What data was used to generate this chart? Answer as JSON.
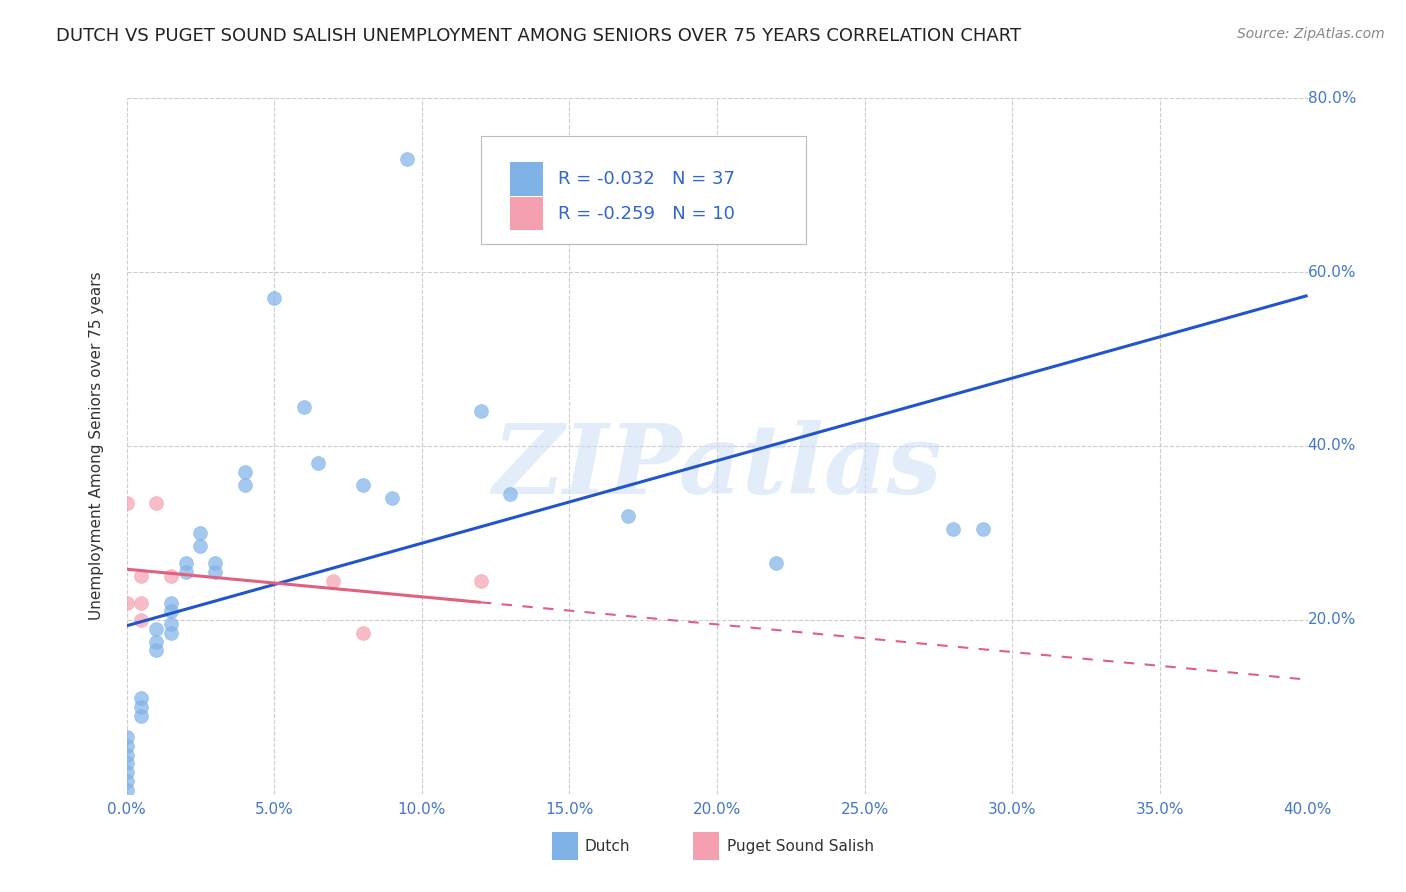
{
  "title": "DUTCH VS PUGET SOUND SALISH UNEMPLOYMENT AMONG SENIORS OVER 75 YEARS CORRELATION CHART",
  "source": "Source: ZipAtlas.com",
  "ylabel": "Unemployment Among Seniors over 75 years",
  "xlim": [
    0.0,
    0.4
  ],
  "ylim": [
    0.0,
    0.8
  ],
  "xticks": [
    0.0,
    0.05,
    0.1,
    0.15,
    0.2,
    0.25,
    0.3,
    0.35,
    0.4
  ],
  "yticks": [
    0.0,
    0.2,
    0.4,
    0.6,
    0.8
  ],
  "xtick_labels": [
    "0.0%",
    "5.0%",
    "10.0%",
    "15.0%",
    "20.0%",
    "25.0%",
    "30.0%",
    "35.0%",
    "40.0%"
  ],
  "ytick_labels_right": [
    "80.0%",
    "60.0%",
    "40.0%",
    "20.0%"
  ],
  "dutch_R": -0.032,
  "dutch_N": 37,
  "pss_R": -0.259,
  "pss_N": 10,
  "dutch_color": "#7fb3e8",
  "pss_color": "#f4a0b0",
  "dutch_line_color": "#2255cc",
  "pss_line_color": "#e06080",
  "watermark_text": "ZIPatlas",
  "dutch_points": [
    [
      0.0,
      0.065
    ],
    [
      0.0,
      0.055
    ],
    [
      0.0,
      0.045
    ],
    [
      0.0,
      0.035
    ],
    [
      0.0,
      0.025
    ],
    [
      0.0,
      0.015
    ],
    [
      0.0,
      0.005
    ],
    [
      0.005,
      0.11
    ],
    [
      0.005,
      0.1
    ],
    [
      0.005,
      0.09
    ],
    [
      0.01,
      0.19
    ],
    [
      0.01,
      0.175
    ],
    [
      0.01,
      0.165
    ],
    [
      0.015,
      0.22
    ],
    [
      0.015,
      0.21
    ],
    [
      0.015,
      0.195
    ],
    [
      0.015,
      0.185
    ],
    [
      0.02,
      0.265
    ],
    [
      0.02,
      0.255
    ],
    [
      0.025,
      0.3
    ],
    [
      0.025,
      0.285
    ],
    [
      0.03,
      0.265
    ],
    [
      0.03,
      0.255
    ],
    [
      0.04,
      0.37
    ],
    [
      0.04,
      0.355
    ],
    [
      0.05,
      0.57
    ],
    [
      0.06,
      0.445
    ],
    [
      0.065,
      0.38
    ],
    [
      0.08,
      0.355
    ],
    [
      0.09,
      0.34
    ],
    [
      0.095,
      0.73
    ],
    [
      0.12,
      0.44
    ],
    [
      0.13,
      0.345
    ],
    [
      0.17,
      0.32
    ],
    [
      0.22,
      0.265
    ],
    [
      0.28,
      0.305
    ],
    [
      0.29,
      0.305
    ]
  ],
  "pss_points": [
    [
      0.0,
      0.335
    ],
    [
      0.0,
      0.22
    ],
    [
      0.005,
      0.25
    ],
    [
      0.005,
      0.22
    ],
    [
      0.005,
      0.2
    ],
    [
      0.01,
      0.335
    ],
    [
      0.015,
      0.25
    ],
    [
      0.07,
      0.245
    ],
    [
      0.08,
      0.185
    ],
    [
      0.12,
      0.245
    ]
  ],
  "background_color": "#ffffff",
  "grid_color": "#cccccc",
  "title_fontsize": 13,
  "axis_label_fontsize": 11,
  "tick_fontsize": 11,
  "legend_fontsize": 13,
  "source_fontsize": 10,
  "marker_size": 100,
  "marker_alpha": 0.7
}
